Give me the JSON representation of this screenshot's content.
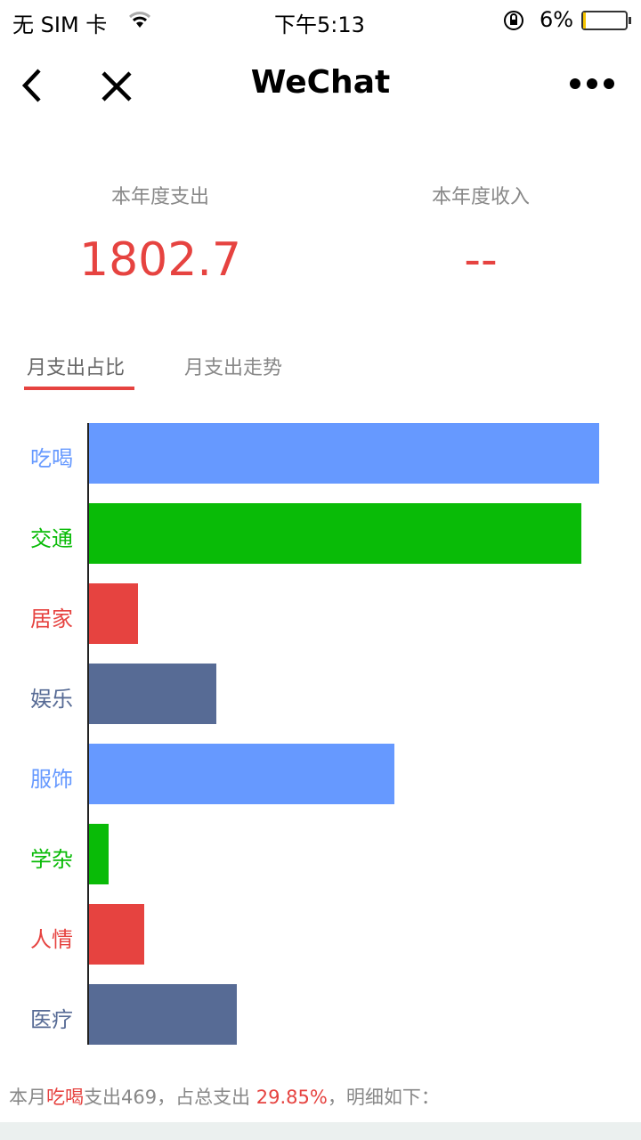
{
  "status_bar": {
    "carrier": "无 SIM 卡",
    "time": "下午5:13",
    "battery": "6%",
    "battery_level": 0.06,
    "icons": [
      "wifi-icon",
      "rotation-lock-icon",
      "battery-icon"
    ]
  },
  "nav": {
    "title": "WeChat",
    "icons": [
      "back-icon",
      "close-icon",
      "more-icon"
    ]
  },
  "summary": {
    "expense_label": "本年度支出",
    "expense_value": "1802.7",
    "income_label": "本年度收入",
    "income_value": "--"
  },
  "tabs": [
    {
      "label": "月支出占比",
      "active": true
    },
    {
      "label": "月支出走势",
      "active": false
    }
  ],
  "colors": {
    "accent": "#e64340",
    "blue": "#6699ff",
    "green": "#09bb07",
    "red": "#e64340",
    "slate": "#576b95"
  },
  "chart_data": {
    "type": "bar",
    "orientation": "horizontal",
    "categories": [
      "吃喝",
      "交通",
      "居家",
      "娱乐",
      "服饰",
      "学杂",
      "人情",
      "医疗"
    ],
    "values": [
      469,
      453,
      45,
      117,
      281,
      18,
      51,
      136
    ],
    "colors": [
      "#6699ff",
      "#09bb07",
      "#e64340",
      "#576b95",
      "#6699ff",
      "#09bb07",
      "#e64340",
      "#576b95"
    ],
    "grid": false
  },
  "footer": {
    "p1": "本月",
    "cat": "吃喝",
    "p2": "支出469，占总支出 ",
    "pct": "29.85%",
    "p3": "，明细如下："
  }
}
